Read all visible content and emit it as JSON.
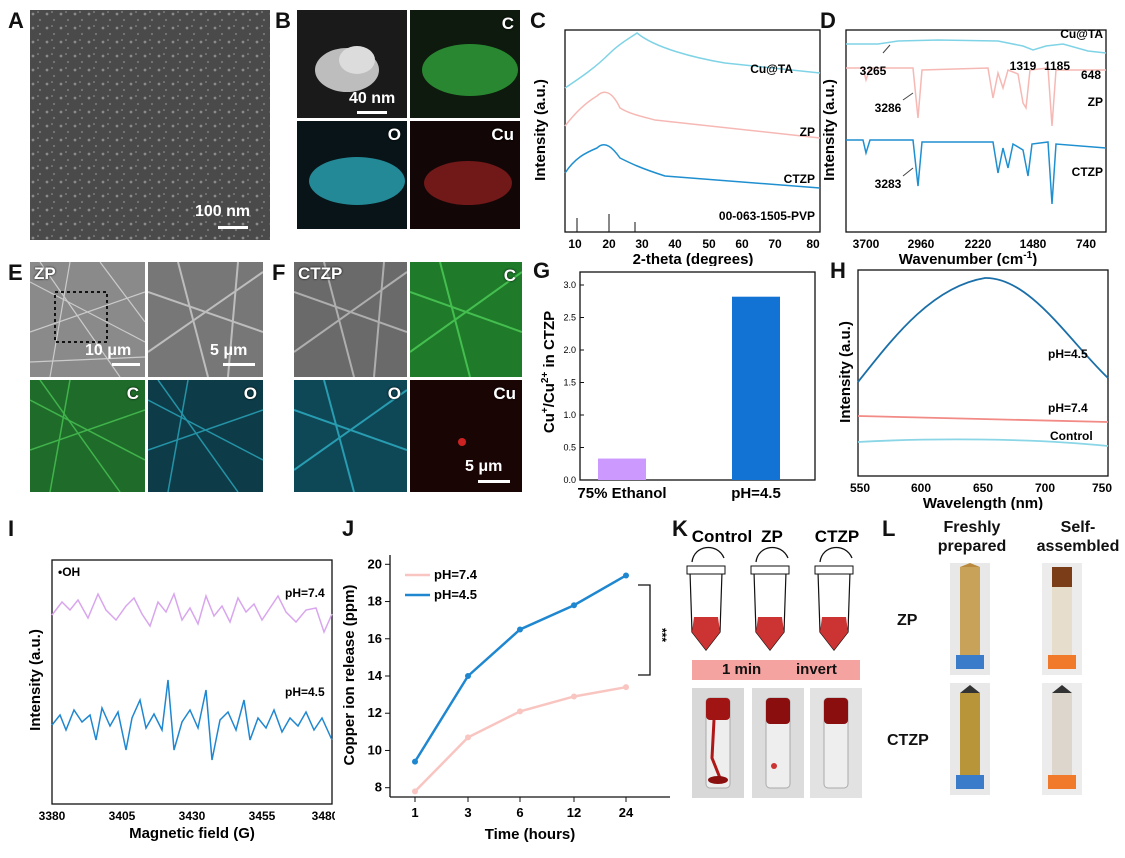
{
  "panels": {
    "A": {
      "label": "A",
      "scale": "100 nm"
    },
    "B": {
      "label": "B",
      "scale": "40 nm",
      "maps": [
        "C",
        "O",
        "Cu"
      ]
    },
    "C": {
      "label": "C",
      "xlabel": "2-theta (degrees)",
      "ylabel": "Intensity (a.u.)",
      "series": [
        "Cu@TA",
        "ZP",
        "CTZP"
      ],
      "ref": "00-063-1505-PVP",
      "xticks": [
        "10",
        "20",
        "30",
        "40",
        "50",
        "60",
        "70",
        "80"
      ],
      "colors": [
        "#7fd3e6",
        "#f6b8b4",
        "#1f8fd0"
      ]
    },
    "D": {
      "label": "D",
      "xlabel": "Wavenumber (cm",
      "xlabel_sup": "-1",
      "xlabel_end": ")",
      "ylabel": "Intensity (a.u.)",
      "series": [
        "Cu@TA",
        "ZP",
        "CTZP"
      ],
      "xticks": [
        "3700",
        "2960",
        "2220",
        "1480",
        "740"
      ],
      "annotations": [
        "3265",
        "1319",
        "1185",
        "648",
        "3286",
        "3283"
      ]
    },
    "E": {
      "label": "E",
      "sample": "ZP",
      "scale1": "10 μm",
      "scale2": "5 μm",
      "maps": [
        "C",
        "O"
      ]
    },
    "F": {
      "label": "F",
      "sample": "CTZP",
      "scale": "5 μm",
      "maps": [
        "C",
        "O",
        "Cu"
      ]
    },
    "G": {
      "label": "G",
      "ylabel_pre": "Cu",
      "ylabel_mid": "/Cu",
      "ylabel_end": " in CTZP",
      "sup1": "+",
      "sup2": "2+",
      "yticks": [
        "0.0",
        "0.5",
        "1.0",
        "1.5",
        "2.0",
        "2.5",
        "3.0"
      ]
    },
    "H": {
      "label": "H",
      "xlabel": "Wavelength (nm)",
      "ylabel": "Intensity (a.u.)",
      "series": [
        "pH=4.5",
        "pH=7.4",
        "Control"
      ],
      "xticks": [
        "550",
        "600",
        "650",
        "700",
        "750"
      ]
    },
    "I": {
      "label": "I",
      "xlabel": "Magnetic field (G)",
      "ylabel": "Intensity (a.u.)",
      "species": "•OH",
      "series": [
        "pH=7.4",
        "pH=4.5"
      ],
      "xticks": [
        "3380",
        "3405",
        "3430",
        "3455",
        "3480"
      ]
    },
    "J": {
      "label": "J",
      "xlabel": "Time (hours)",
      "ylabel": "Copper ion release (ppm)",
      "sig": "***",
      "yticks": [
        "8",
        "10",
        "12",
        "14",
        "16",
        "18",
        "20"
      ]
    },
    "K": {
      "label": "K",
      "tubes": [
        "Control",
        "ZP",
        "CTZP"
      ],
      "banner_left": "1 min",
      "banner_right": "invert"
    },
    "L": {
      "label": "L",
      "col1": [
        "Freshly",
        "prepared"
      ],
      "col2": [
        "Self-",
        "assembled"
      ],
      "rows": [
        "ZP",
        "CTZP"
      ]
    }
  },
  "chart_data": [
    {
      "panel": "G",
      "type": "bar",
      "categories": [
        "75% Ethanol",
        "pH=4.5"
      ],
      "values": [
        0.33,
        2.82
      ],
      "colors": [
        "#cc99ff",
        "#1273d4"
      ],
      "ylim": [
        0,
        3.2
      ]
    },
    {
      "panel": "J",
      "type": "line",
      "categories": [
        "1",
        "3",
        "6",
        "12",
        "24"
      ],
      "ylim": [
        7.5,
        20.5
      ],
      "series": [
        {
          "name": "pH=7.4",
          "color": "#f9c5c1",
          "values": [
            7.8,
            10.7,
            12.1,
            12.9,
            13.4
          ]
        },
        {
          "name": "pH=4.5",
          "color": "#1f87d0",
          "values": [
            9.4,
            14.0,
            16.5,
            17.8,
            19.4
          ]
        }
      ]
    }
  ]
}
